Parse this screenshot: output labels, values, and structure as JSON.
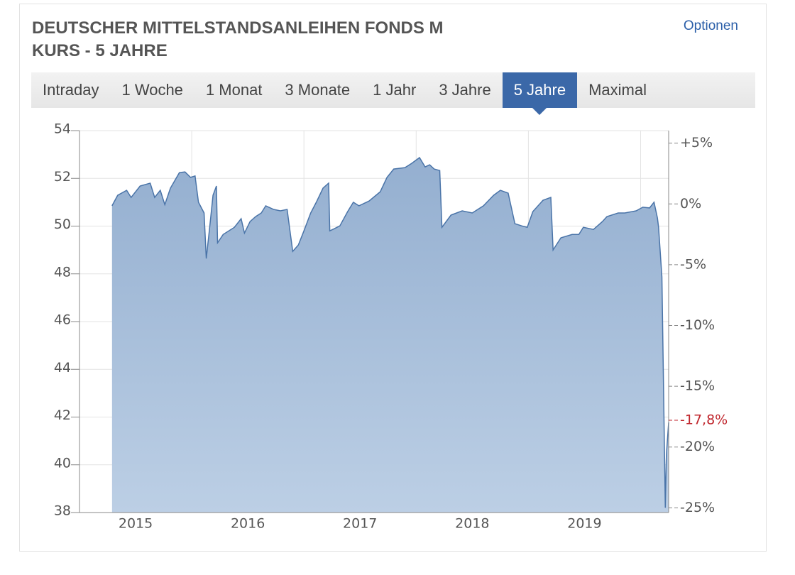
{
  "header": {
    "title_line1": "DEUTSCHER MITTELSTANDSANLEIHEN FONDS M",
    "title_line2": "KURS - 5 JAHRE",
    "options": "Optionen"
  },
  "tabs": [
    {
      "label": "Intraday",
      "active": false
    },
    {
      "label": "1 Woche",
      "active": false
    },
    {
      "label": "1 Monat",
      "active": false
    },
    {
      "label": "3 Monate",
      "active": false
    },
    {
      "label": "1 Jahr",
      "active": false
    },
    {
      "label": "3 Jahre",
      "active": false
    },
    {
      "label": "5 Jahre",
      "active": true
    },
    {
      "label": "Maximal",
      "active": false
    }
  ],
  "chart_data": {
    "type": "area",
    "color": "#4a74a8",
    "x": [
      2015.29,
      2015.34,
      2015.42,
      2015.46,
      2015.54,
      2015.63,
      2015.67,
      2015.72,
      2015.76,
      2015.81,
      2015.89,
      2015.94,
      2015.99,
      2016.03,
      2016.06,
      2016.11,
      2016.13,
      2016.16,
      2016.19,
      2016.22,
      2016.23,
      2016.28,
      2016.38,
      2016.44,
      2016.47,
      2016.52,
      2016.57,
      2016.62,
      2016.66,
      2016.73,
      2016.79,
      2016.85,
      2016.88,
      2016.9,
      2016.95,
      2017.0,
      2017.06,
      2017.11,
      2017.17,
      2017.22,
      2017.23,
      2017.27,
      2017.32,
      2017.39,
      2017.44,
      2017.49,
      2017.58,
      2017.68,
      2017.74,
      2017.8,
      2017.9,
      2017.96,
      2018.03,
      2018.08,
      2018.12,
      2018.16,
      2018.21,
      2018.23,
      2018.31,
      2018.41,
      2018.5,
      2018.6,
      2018.69,
      2018.75,
      2018.82,
      2018.88,
      2018.94,
      2018.99,
      2019.04,
      2019.13,
      2019.2,
      2019.22,
      2019.29,
      2019.39,
      2019.45,
      2019.49,
      2019.58,
      2019.66,
      2019.7,
      2019.8,
      2019.86,
      2019.96,
      2020.02,
      2020.08,
      2020.12,
      2020.15,
      2020.16,
      2020.19,
      2020.22,
      2020.23,
      2020.25
    ],
    "values": [
      50.85,
      51.29,
      51.5,
      51.2,
      51.68,
      51.8,
      51.2,
      51.5,
      50.9,
      51.59,
      52.24,
      52.27,
      52.04,
      52.1,
      51.0,
      50.55,
      48.64,
      49.95,
      51.29,
      51.68,
      49.3,
      49.65,
      49.95,
      50.31,
      49.71,
      50.19,
      50.4,
      50.55,
      50.85,
      50.7,
      50.64,
      50.7,
      49.65,
      48.94,
      49.21,
      49.8,
      50.55,
      51.0,
      51.59,
      51.8,
      49.8,
      49.89,
      50.01,
      50.61,
      51.0,
      50.85,
      51.05,
      51.44,
      52.04,
      52.39,
      52.45,
      52.63,
      52.87,
      52.48,
      52.57,
      52.39,
      52.33,
      49.95,
      50.46,
      50.64,
      50.55,
      50.85,
      51.29,
      51.5,
      51.38,
      50.1,
      50.01,
      49.95,
      50.61,
      51.08,
      51.2,
      49.0,
      49.51,
      49.65,
      49.65,
      49.95,
      49.86,
      50.19,
      50.4,
      50.55,
      50.55,
      50.64,
      50.79,
      50.76,
      51.0,
      50.34,
      49.95,
      47.87,
      38.2,
      40.43,
      41.77
    ],
    "xlim": [
      2015,
      2020.25
    ],
    "xticks": [
      {
        "value": 2015.5,
        "label": "2015"
      },
      {
        "value": 2016.5,
        "label": "2016"
      },
      {
        "value": 2017.5,
        "label": "2017"
      },
      {
        "value": 2018.5,
        "label": "2018"
      },
      {
        "value": 2019.5,
        "label": "2019"
      }
    ],
    "xgrid": [
      2016,
      2017,
      2018,
      2019,
      2020
    ],
    "ylim": [
      38,
      54
    ],
    "yticks": [
      38,
      40,
      42,
      44,
      46,
      48,
      50,
      52,
      54
    ],
    "y2lim": [
      -25.39,
      6.03
    ],
    "y2ticks": [
      {
        "value": 5,
        "label": "+5%"
      },
      {
        "value": 0,
        "label": "0%"
      },
      {
        "value": -5,
        "label": "-5%"
      },
      {
        "value": -10,
        "label": "-10%"
      },
      {
        "value": -15,
        "label": "-15%"
      },
      {
        "value": -20,
        "label": "-20%"
      },
      {
        "value": -25,
        "label": "-25%"
      }
    ],
    "last_change": {
      "value": -17.8,
      "label": "-17,8%",
      "color": "#c0262d"
    },
    "grid": true
  }
}
